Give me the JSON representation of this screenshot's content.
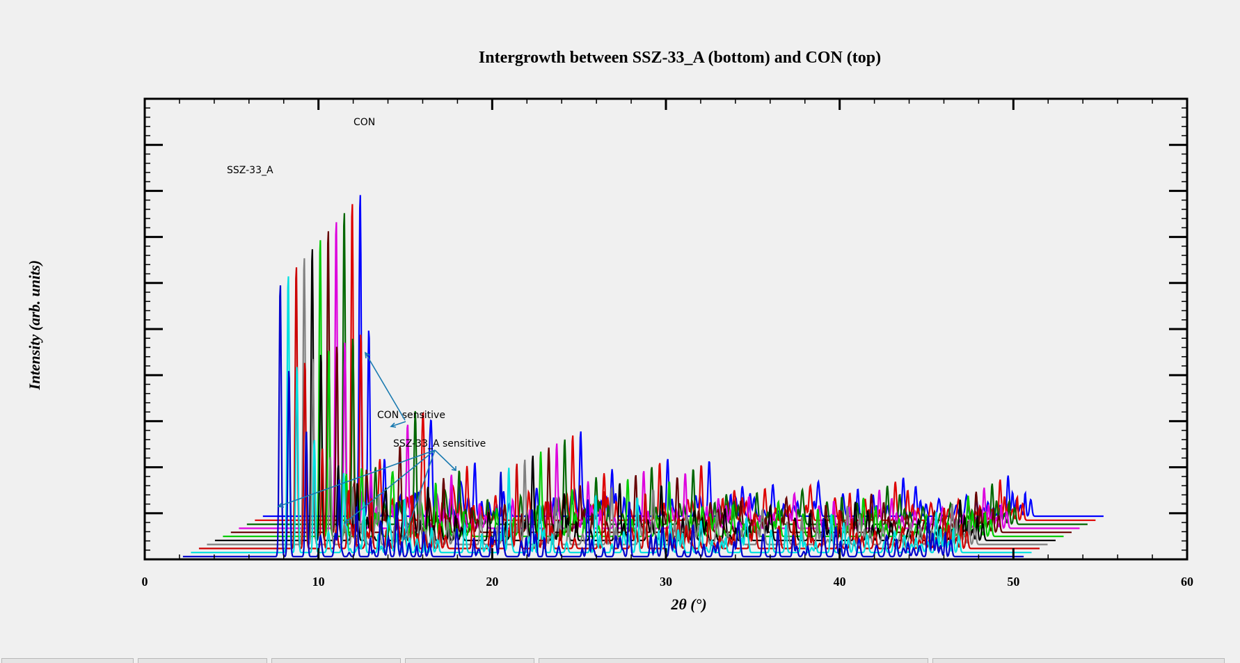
{
  "chart_data": {
    "type": "line",
    "title": "Intergrowth between SSZ-33_A (bottom) and CON (top)",
    "xlabel": "2θ (°)",
    "ylabel": "Intensity (arb. units)",
    "xlim": [
      0,
      60
    ],
    "xticks": [
      0,
      10,
      20,
      30,
      40,
      50,
      60
    ],
    "grid": false,
    "stacking": "offset diagonally (waterfall)",
    "series_colors": [
      "#0000cc",
      "#00e0e0",
      "#cc0000",
      "#808080",
      "#000000",
      "#00cc00",
      "#660000",
      "#dd00dd",
      "#006600",
      "#dd0000",
      "#0000ff"
    ],
    "series_count": 11,
    "peaks_2theta": {
      "bottom": [
        7.8,
        8.3,
        11.2,
        12.2,
        14.5,
        20.5,
        22.3,
        25.5,
        27.9
      ],
      "top": [
        7.8,
        8.3,
        9.2,
        11.8,
        14.4,
        20.5,
        22.3,
        25.5,
        27.9
      ]
    },
    "annotations": {
      "con": "CON",
      "ssz": "SSZ-33_A",
      "con_sensitive": "CON sensitive",
      "ssz_sensitive": "SSZ-33_A sensitive"
    }
  }
}
